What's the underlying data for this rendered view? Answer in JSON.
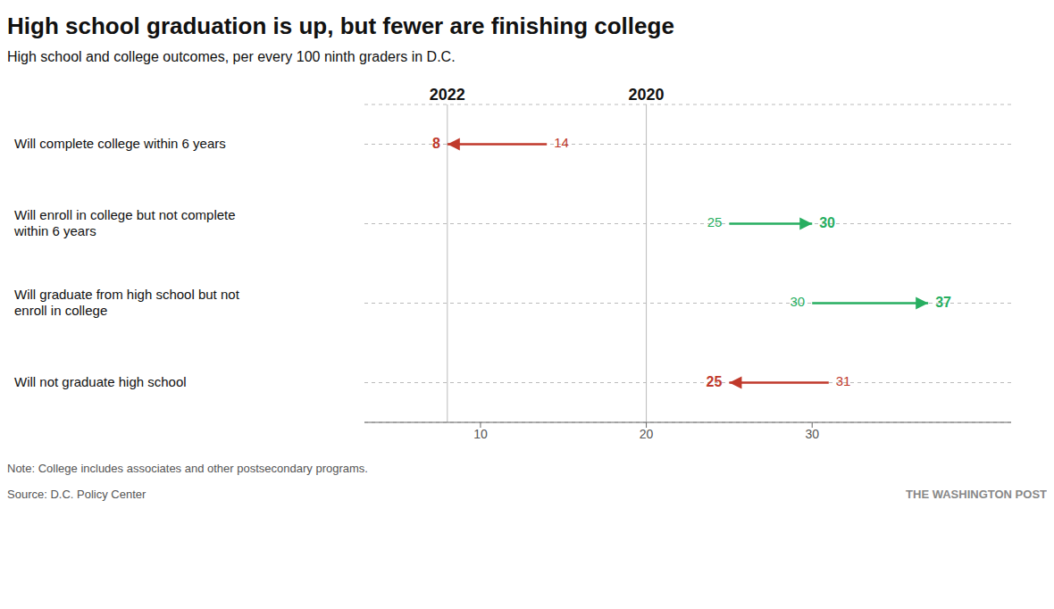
{
  "chart_data": {
    "type": "arrow",
    "title": "High school graduation is up, but fewer are finishing college",
    "subtitle": "High school and college outcomes, per every 100 ninth graders in D.C.",
    "note": "Note: College includes associates and other postsecondary programs.",
    "source": "Source: D.C. Policy Center",
    "watermark": "THE WASHINGTON POST",
    "orientation": "horizontal",
    "categories": [
      "Will complete college within 6 years",
      "Will enroll in college but not complete\nwithin 6 years",
      "Will graduate from high school but not\nenroll in college",
      "Will not graduate high school"
    ],
    "series": [
      {
        "name": "2020",
        "values": [
          14,
          25,
          30,
          31
        ]
      },
      {
        "name": "2022",
        "values": [
          8,
          30,
          37,
          25
        ]
      }
    ],
    "colors": [
      "#c0392b",
      "#27ae60",
      "#27ae60",
      "#c0392b"
    ],
    "annotations": [
      {
        "text": "2022",
        "x": 8
      },
      {
        "text": "2020",
        "x": 20
      }
    ],
    "xlim": [
      3,
      42
    ],
    "xticks": [
      10,
      20,
      30
    ],
    "grid": true,
    "data_labels": true
  }
}
